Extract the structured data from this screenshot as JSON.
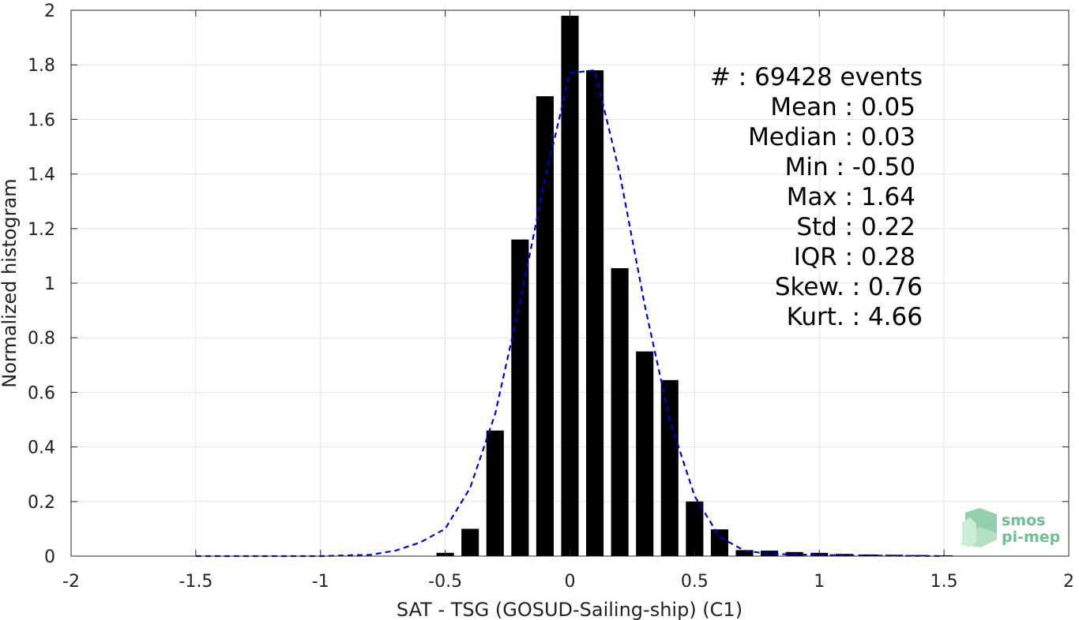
{
  "chart_data": {
    "type": "bar",
    "xlabel": "SAT - TSG (GOSUD-Sailing-ship) (C1)",
    "ylabel": "Normalized histogram",
    "xlim": [
      -2,
      2
    ],
    "ylim": [
      0,
      2
    ],
    "x_ticks": [
      -2,
      -1.5,
      -1,
      -0.5,
      0,
      0.5,
      1,
      1.5,
      2
    ],
    "x_tick_labels": [
      "-2",
      "-1.5",
      "-1",
      "-0.5",
      "0",
      "0.5",
      "1",
      "1.5",
      "2"
    ],
    "y_ticks": [
      0,
      0.2,
      0.4,
      0.6,
      0.8,
      1,
      1.2,
      1.4,
      1.6,
      1.8,
      2
    ],
    "y_tick_labels": [
      "0",
      "0.2",
      "0.4",
      "0.6",
      "0.8",
      "1",
      "1.2",
      "1.4",
      "1.6",
      "1.8",
      "2"
    ],
    "grid": true,
    "bar_color": "#000000",
    "bar_width": 0.07,
    "bars": {
      "x": [
        -0.5,
        -0.4,
        -0.3,
        -0.2,
        -0.1,
        0.0,
        0.1,
        0.2,
        0.3,
        0.4,
        0.5,
        0.6,
        0.7,
        0.8,
        0.9,
        1.0,
        1.1,
        1.2,
        1.3,
        1.4,
        1.5
      ],
      "values": [
        0.012,
        0.1,
        0.46,
        1.16,
        1.685,
        1.98,
        1.78,
        1.055,
        0.75,
        0.645,
        0.2,
        0.098,
        0.022,
        0.02,
        0.015,
        0.012,
        0.008,
        0.006,
        0.005,
        0.004,
        0.003
      ]
    },
    "fit_curve": {
      "color": "#0000dd",
      "style": "dashed",
      "x": [
        -1.5,
        -1.0,
        -0.8,
        -0.7,
        -0.6,
        -0.5,
        -0.4,
        -0.3,
        -0.2,
        -0.1,
        0.0,
        0.1,
        0.2,
        0.3,
        0.4,
        0.5,
        0.6,
        0.7,
        0.8,
        1.0,
        1.2,
        1.5
      ],
      "y": [
        0.0,
        0.0,
        0.005,
        0.02,
        0.05,
        0.1,
        0.25,
        0.52,
        0.93,
        1.38,
        1.77,
        1.78,
        1.4,
        0.92,
        0.5,
        0.22,
        0.07,
        0.02,
        0.008,
        0.004,
        0.002,
        0.0
      ]
    },
    "annotations": [
      {
        "label": "#  : 69428 events"
      },
      {
        "label": "Mean : 0.05"
      },
      {
        "label": "Median : 0.03"
      },
      {
        "label": "Min : -0.50"
      },
      {
        "label": "Max : 1.64"
      },
      {
        "label": "Std : 0.22"
      },
      {
        "label": "IQR : 0.28"
      },
      {
        "label": "Skew. : 0.76"
      },
      {
        "label": "Kurt. : 4.66"
      }
    ]
  },
  "logo": {
    "line1": "smos",
    "line2": "pi-mep",
    "color": "#6fbf8f"
  }
}
